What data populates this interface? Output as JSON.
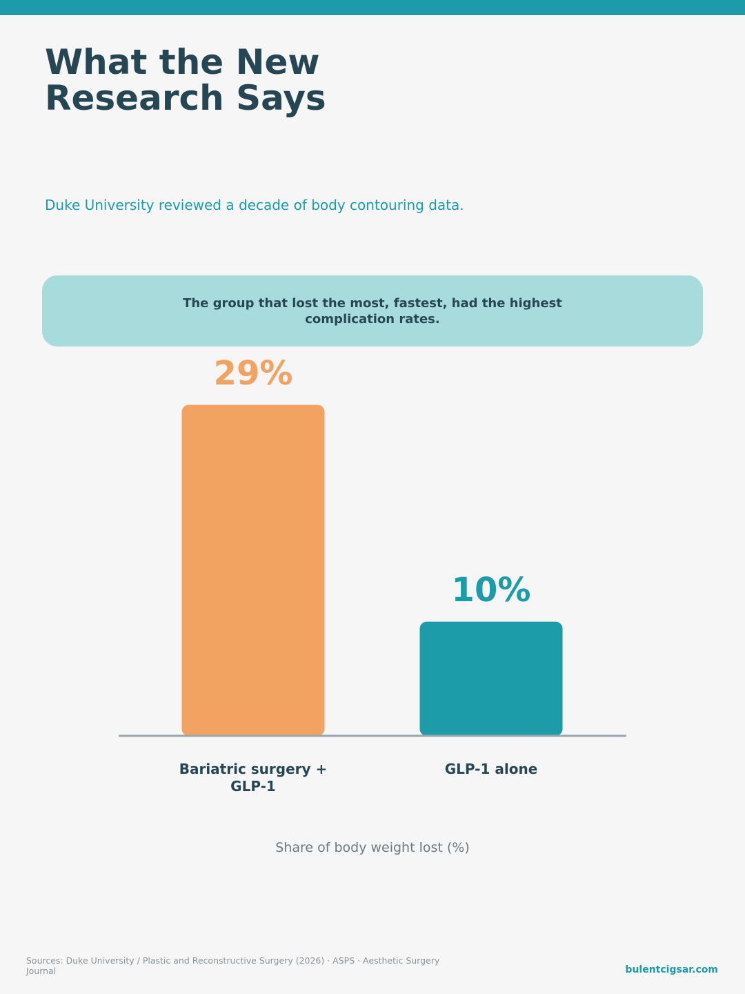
{
  "chart_data": {
    "type": "bar",
    "title": "What the New Research Says",
    "subtitle": "Duke University reviewed a decade of body contouring data.",
    "annotation": "The group that lost the most, fastest, had the highest complication rates.",
    "categories": [
      "Bariatric surgery + GLP-1",
      "GLP-1 alone"
    ],
    "values": [
      29,
      10
    ],
    "value_labels": [
      "29%",
      "10%"
    ],
    "colors": [
      "#f2a261",
      "#1c9ba8"
    ],
    "x_label": "Share of body weight lost (%)",
    "ylim": [
      0,
      30
    ]
  },
  "footer": {
    "sources": "Sources: Duke University / Plastic and Reconstructive Surgery (2026) · ASPS · Aesthetic Surgery Journal",
    "brand": "bulentcigsar.com"
  }
}
